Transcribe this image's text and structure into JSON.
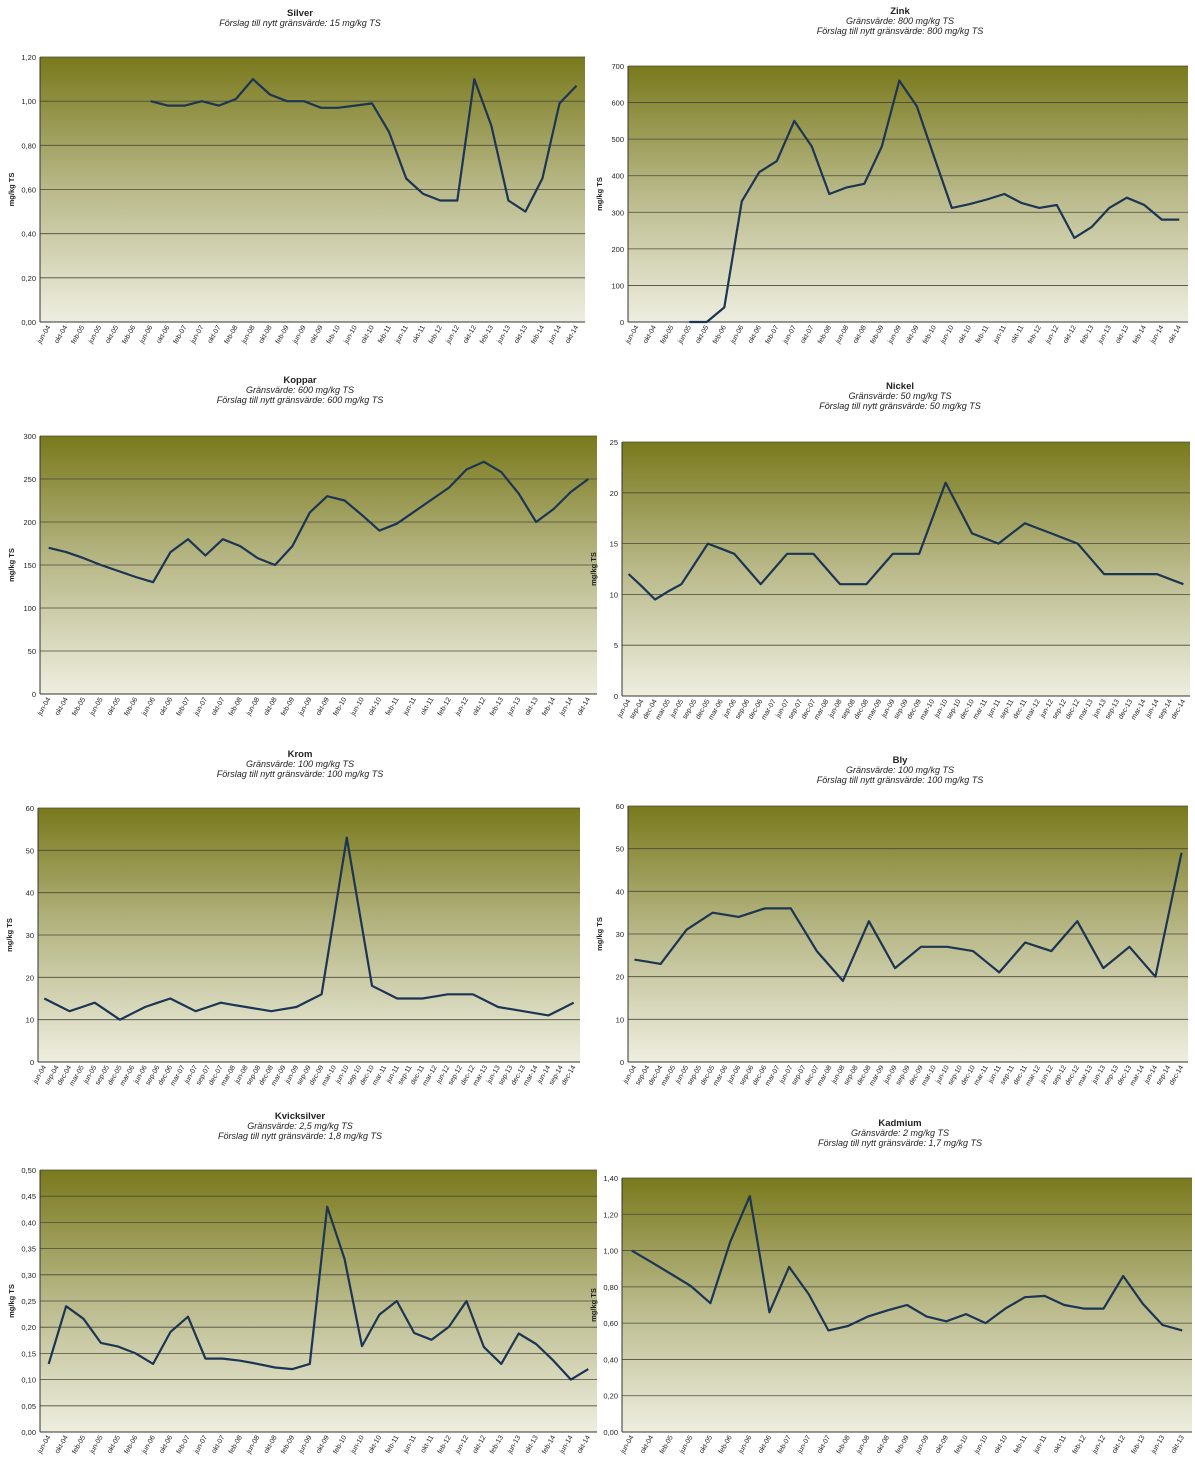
{
  "chart_data": [
    {
      "type": "line",
      "title": "Silver",
      "subtitle": [
        "Förslag till nytt gränsvärde: 15 mg/kg TS"
      ],
      "ylabel": "mg/kg TS",
      "categories": [
        "jun-04",
        "okt-04",
        "feb-05",
        "jun-05",
        "okt-05",
        "feb-06",
        "jun-06",
        "okt-06",
        "feb-07",
        "jun-07",
        "okt-07",
        "feb-08",
        "jun-08",
        "okt-08",
        "feb-09",
        "jun-09",
        "okt-09",
        "feb-10",
        "jun-10",
        "okt-10",
        "feb-11",
        "jun-11",
        "okt-11",
        "feb-12",
        "jun-12",
        "okt-12",
        "feb-13",
        "jun-13",
        "okt-13",
        "feb-14",
        "jun-14",
        "okt-14"
      ],
      "values": [
        null,
        null,
        null,
        null,
        null,
        null,
        1.0,
        0.98,
        0.98,
        1.0,
        0.98,
        1.01,
        1.1,
        1.03,
        1.0,
        1.0,
        0.97,
        0.97,
        0.98,
        0.99,
        0.86,
        0.65,
        0.58,
        0.55,
        0.55,
        1.1,
        0.89,
        0.55,
        0.5,
        0.65,
        0.99,
        1.07
      ],
      "color": "#1c3553",
      "ylim": [
        0,
        1.2
      ],
      "yticks": [
        {
          "value": 0,
          "label": "0,00"
        },
        {
          "value": 0.2,
          "label": "0,20"
        },
        {
          "value": 0.4,
          "label": "0,40"
        },
        {
          "value": 0.6,
          "label": "0,60"
        },
        {
          "value": 0.8,
          "label": "0,80"
        },
        {
          "value": 1.0,
          "label": "1,00"
        },
        {
          "value": 1.2,
          "label": "1,20"
        }
      ],
      "grid": true
    },
    {
      "type": "line",
      "title": "Zink",
      "subtitle": [
        "Gränsvärde: 800 mg/kg TS",
        "Förslag till nytt gränsvärde: 800 mg/kg TS"
      ],
      "ylabel": "mg/kg TS",
      "categories": [
        "jun-04",
        "okt-04",
        "feb-05",
        "jun-05",
        "okt-05",
        "feb-06",
        "jun-06",
        "okt-06",
        "feb-07",
        "jun-07",
        "okt-07",
        "feb-08",
        "jun-08",
        "okt-08",
        "feb-09",
        "jun-09",
        "okt-09",
        "feb-10",
        "jun-10",
        "okt-10",
        "feb-11",
        "jun-11",
        "okt-11",
        "feb-12",
        "jun-12",
        "okt-12",
        "feb-13",
        "jun-13",
        "okt-13",
        "feb-14",
        "jun-14",
        "okt-14"
      ],
      "values": [
        null,
        null,
        null,
        0,
        0,
        40,
        330,
        410,
        440,
        550,
        480,
        350,
        368,
        378,
        480,
        660,
        590,
        450,
        312,
        322,
        335,
        350,
        325,
        312,
        320,
        230,
        260,
        312,
        340,
        320,
        280,
        280
      ],
      "color": "#1c3553",
      "ylim": [
        0,
        700
      ],
      "yticks": [
        0,
        100,
        200,
        300,
        400,
        500,
        600,
        700
      ],
      "grid": true
    },
    {
      "type": "line",
      "title": "Koppar",
      "subtitle": [
        "Gränsvärde: 600 mg/kg TS",
        "Förslag till nytt gränsvärde: 600 mg/kg TS"
      ],
      "ylabel": "mg/kg TS",
      "categories": [
        "jun-04",
        "okt-04",
        "feb-05",
        "jun-05",
        "okt-05",
        "feb-06",
        "jun-06",
        "okt-06",
        "feb-07",
        "jun-07",
        "okt-07",
        "feb-08",
        "jun-08",
        "okt-08",
        "feb-09",
        "jun-09",
        "okt-09",
        "feb-10",
        "jun-10",
        "okt-10",
        "feb-11",
        "jun-11",
        "okt-11",
        "feb-12",
        "jun-12",
        "okt-12",
        "feb-13",
        "jun-13",
        "okt-13",
        "feb-14",
        "jun-14",
        "okt-14"
      ],
      "values": [
        170,
        165,
        158,
        150,
        143,
        136,
        130,
        165,
        180,
        161,
        180,
        172,
        158,
        150,
        172,
        211,
        230,
        225,
        208,
        190,
        198,
        212,
        226,
        240,
        261,
        270,
        258,
        233,
        200,
        215,
        235,
        250
      ],
      "color": "#1c3553",
      "ylim": [
        0,
        300
      ],
      "yticks": [
        0,
        50,
        100,
        150,
        200,
        250,
        300
      ],
      "grid": true
    },
    {
      "type": "line",
      "title": "Nickel",
      "subtitle": [
        "Gränsvärde: 50 mg/kg TS",
        "Förslag till nytt gränsvärde: 50 mg/kg TS"
      ],
      "ylabel": "mg/kg TS",
      "categories": [
        "jun-04",
        "sep-04",
        "dec-04",
        "mar-05",
        "jun-05",
        "sep-05",
        "dec-05",
        "mar-06",
        "jun-06",
        "sep-06",
        "dec-06",
        "mar-07",
        "jun-07",
        "sep-07",
        "dec-07",
        "mar-08",
        "jun-08",
        "sep-08",
        "dec-08",
        "mar-09",
        "jun-09",
        "sep-09",
        "dec-09",
        "mar-10",
        "jun-10",
        "sep-10",
        "dec-10",
        "mar-11",
        "jun-11",
        "sep-11",
        "dec-11",
        "mar-12",
        "jun-12",
        "sep-12",
        "dec-12",
        "mar-13",
        "jun-13",
        "sep-13",
        "dec-13",
        "mar-14",
        "jun-14",
        "sep-14",
        "dec-14"
      ],
      "values": [
        12,
        10.8,
        9.5,
        10.3,
        11,
        13,
        15,
        14.5,
        14,
        12.5,
        11,
        12.5,
        14,
        14,
        14,
        12.5,
        11,
        11,
        11,
        12.5,
        14,
        14,
        14,
        17.5,
        21,
        18.5,
        16,
        15.5,
        15,
        16,
        17,
        16.5,
        16,
        15.5,
        15,
        13.5,
        12,
        12,
        12,
        12,
        12,
        11.5,
        11
      ],
      "color": "#1c3553",
      "ylim": [
        0,
        25
      ],
      "yticks": [
        0,
        5,
        10,
        15,
        20,
        25
      ],
      "grid": true
    },
    {
      "type": "line",
      "title": "Krom",
      "subtitle": [
        "Gränsvärde: 100 mg/kg TS",
        "Förslag till nytt gränsvärde: 100 mg/kg TS"
      ],
      "ylabel": "mg/kg TS",
      "categories": [
        "jun-04",
        "sep-04",
        "dec-04",
        "mar-05",
        "jun-05",
        "sep-05",
        "dec-05",
        "mar-06",
        "jun-06",
        "sep-06",
        "dec-06",
        "mar-07",
        "jun-07",
        "sep-07",
        "dec-07",
        "mar-08",
        "jun-08",
        "sep-08",
        "dec-08",
        "mar-09",
        "jun-09",
        "sep-09",
        "dec-09",
        "mar-10",
        "jun-10",
        "sep-10",
        "dec-10",
        "mar-11",
        "jun-11",
        "sep-11",
        "dec-11",
        "mar-12",
        "jun-12",
        "sep-12",
        "dec-12",
        "mar-13",
        "jun-13",
        "sep-13",
        "dec-13",
        "mar-14",
        "jun-14",
        "sep-14",
        "dec-14"
      ],
      "values": [
        15,
        13.5,
        12,
        13,
        14,
        12,
        10,
        11.5,
        13,
        14,
        15,
        13.5,
        12,
        13,
        14,
        13.5,
        13,
        12.5,
        12,
        12.5,
        13,
        14.5,
        16,
        34.5,
        53,
        35.5,
        18,
        16.5,
        15,
        15,
        15,
        15.5,
        16,
        16,
        16,
        14.5,
        13,
        12.5,
        12,
        11.5,
        11,
        12.5,
        14
      ],
      "color": "#1c3553",
      "ylim": [
        0,
        60
      ],
      "yticks": [
        0,
        10,
        20,
        30,
        40,
        50,
        60
      ],
      "grid": true
    },
    {
      "type": "line",
      "title": "Bly",
      "subtitle": [
        "Gränsvärde: 100 mg/kg TS",
        "Förslag till nytt gränsvärde: 100 mg/kg TS"
      ],
      "ylabel": "mg/kg TS",
      "categories": [
        "jun-04",
        "sep-04",
        "dec-04",
        "mar-05",
        "jun-05",
        "sep-05",
        "dec-05",
        "mar-06",
        "jun-06",
        "sep-06",
        "dec-06",
        "mar-07",
        "jun-07",
        "sep-07",
        "dec-07",
        "mar-08",
        "jun-08",
        "sep-08",
        "dec-08",
        "mar-09",
        "jun-09",
        "sep-09",
        "dec-09",
        "mar-10",
        "jun-10",
        "sep-10",
        "dec-10",
        "mar-11",
        "jun-11",
        "sep-11",
        "dec-11",
        "mar-12",
        "jun-12",
        "sep-12",
        "dec-12",
        "mar-13",
        "jun-13",
        "sep-13",
        "dec-13",
        "mar-14",
        "jun-14",
        "sep-14",
        "dec-14"
      ],
      "values": [
        24,
        23.5,
        23,
        27,
        31,
        33,
        35,
        34.5,
        34,
        35,
        36,
        36,
        36,
        31,
        26,
        22.5,
        19,
        26,
        33,
        27.5,
        22,
        24.5,
        27,
        27,
        27,
        26.5,
        26,
        23.5,
        21,
        24.5,
        28,
        27,
        26,
        29.5,
        33,
        27.5,
        22,
        24.5,
        27,
        23.5,
        20,
        34.5,
        49
      ],
      "color": "#1c3553",
      "ylim": [
        0,
        60
      ],
      "yticks": [
        0,
        10,
        20,
        30,
        40,
        50,
        60
      ],
      "grid": true
    },
    {
      "type": "line",
      "title": "Kvicksilver",
      "subtitle": [
        "Gränsvärde: 2,5 mg/kg TS",
        "Förslag till nytt gränsvärde: 1,8 mg/kg TS"
      ],
      "ylabel": "mg/kg TS",
      "categories": [
        "jun-04",
        "okt-04",
        "feb-05",
        "jun-05",
        "okt-05",
        "feb-06",
        "jun-06",
        "okt-06",
        "feb-07",
        "jun-07",
        "okt-07",
        "feb-08",
        "jun-08",
        "okt-08",
        "feb-09",
        "jun-09",
        "okt-09",
        "feb-10",
        "jun-10",
        "okt-10",
        "feb-11",
        "jun-11",
        "okt-11",
        "feb-12",
        "jun-12",
        "okt-12",
        "feb-13",
        "jun-13",
        "okt-13",
        "feb-14",
        "jun-14",
        "okt-14"
      ],
      "values": [
        0.13,
        0.24,
        0.216,
        0.17,
        0.163,
        0.15,
        0.13,
        0.191,
        0.22,
        0.14,
        0.14,
        0.136,
        0.13,
        0.123,
        0.12,
        0.13,
        0.43,
        0.33,
        0.164,
        0.224,
        0.25,
        0.189,
        0.176,
        0.201,
        0.25,
        0.162,
        0.13,
        0.188,
        0.168,
        0.136,
        0.1,
        0.12
      ],
      "color": "#1c3553",
      "ylim": [
        0,
        0.5
      ],
      "yticks": [
        {
          "value": 0,
          "label": "0,00"
        },
        {
          "value": 0.05,
          "label": "0,05"
        },
        {
          "value": 0.1,
          "label": "0,10"
        },
        {
          "value": 0.15,
          "label": "0,15"
        },
        {
          "value": 0.2,
          "label": "0,20"
        },
        {
          "value": 0.25,
          "label": "0,25"
        },
        {
          "value": 0.3,
          "label": "0,30"
        },
        {
          "value": 0.35,
          "label": "0,35"
        },
        {
          "value": 0.4,
          "label": "0,40"
        },
        {
          "value": 0.45,
          "label": "0,45"
        },
        {
          "value": 0.5,
          "label": "0,50"
        }
      ],
      "grid": true
    },
    {
      "type": "line",
      "title": "Kadmium",
      "subtitle": [
        "Gränsvärde: 2 mg/kg TS",
        "Förslag till nytt gränsvärde: 1,7 mg/kg TS"
      ],
      "ylabel": "mg/kg TS",
      "categories": [
        "jun-04",
        "okt-04",
        "feb-05",
        "jun-05",
        "okt-05",
        "feb-06",
        "jun-06",
        "okt-06",
        "feb-07",
        "jun-07",
        "okt-07",
        "feb-08",
        "jun-08",
        "okt-08",
        "feb-09",
        "jun-09",
        "okt-09",
        "feb-10",
        "jun-10",
        "okt-10",
        "feb-11",
        "jun-11",
        "okt-11",
        "feb-12",
        "jun-12",
        "okt-12",
        "feb-13",
        "jun-13",
        "okt-13"
      ],
      "values": [
        1.0,
        0.936,
        0.871,
        0.805,
        0.71,
        1.046,
        1.3,
        0.66,
        0.91,
        0.76,
        0.56,
        0.584,
        0.636,
        0.67,
        0.7,
        0.636,
        0.61,
        0.65,
        0.6,
        0.68,
        0.743,
        0.75,
        0.7,
        0.68,
        0.68,
        0.86,
        0.706,
        0.59,
        0.56
      ],
      "color": "#1c3553",
      "ylim": [
        0,
        1.4
      ],
      "yticks": [
        {
          "value": 0,
          "label": "0,00"
        },
        {
          "value": 0.2,
          "label": "0,20"
        },
        {
          "value": 0.4,
          "label": "0,40"
        },
        {
          "value": 0.6,
          "label": "0,60"
        },
        {
          "value": 0.8,
          "label": "0,80"
        },
        {
          "value": 1.0,
          "label": "1,00"
        },
        {
          "value": 1.2,
          "label": "1,20"
        },
        {
          "value": 1.4,
          "label": "1,40"
        }
      ],
      "grid": true
    }
  ]
}
